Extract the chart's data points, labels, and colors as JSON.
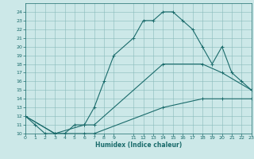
{
  "title": "",
  "xlabel": "Humidex (Indice chaleur)",
  "bg_color": "#cce8e8",
  "grid_color": "#88bbbb",
  "line_color": "#1a6b6b",
  "ylim": [
    10,
    25
  ],
  "xlim": [
    0,
    23
  ],
  "yticks": [
    10,
    11,
    12,
    13,
    14,
    15,
    16,
    17,
    18,
    19,
    20,
    21,
    22,
    23,
    24
  ],
  "xticks": [
    0,
    1,
    2,
    3,
    4,
    5,
    6,
    7,
    8,
    9,
    11,
    12,
    13,
    14,
    15,
    16,
    17,
    18,
    19,
    20,
    21,
    22,
    23
  ],
  "line1_x": [
    0,
    1,
    2,
    3,
    4,
    5,
    6,
    7,
    8,
    9,
    11,
    12,
    13,
    14,
    15,
    16,
    17,
    18,
    19,
    20,
    21,
    22,
    23
  ],
  "line1_y": [
    12,
    11,
    10,
    10,
    10,
    11,
    11,
    13,
    16,
    19,
    21,
    23,
    23,
    24,
    24,
    23,
    22,
    20,
    18,
    20,
    17,
    16,
    15
  ],
  "line2_x": [
    0,
    3,
    6,
    7,
    14,
    18,
    20,
    23
  ],
  "line2_y": [
    12,
    10,
    11,
    11,
    18,
    18,
    17,
    15
  ],
  "line3_x": [
    0,
    3,
    6,
    7,
    14,
    18,
    20,
    23
  ],
  "line3_y": [
    12,
    10,
    10,
    10,
    13,
    14,
    14,
    14
  ]
}
